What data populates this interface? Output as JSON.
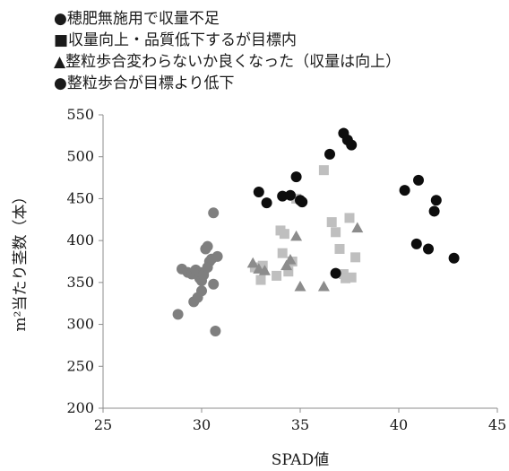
{
  "colors": {
    "nitrogen_shortage": "#7f7f7f",
    "within_target": "#bfbfbf",
    "improved": "#8c8c8c",
    "below_target": "#0d0d0d",
    "axis": "#8c8c8c"
  },
  "legend": [
    {
      "label": "●穂肥無施用で収量不足",
      "marker": "circle",
      "color_key": "nitrogen_shortage"
    },
    {
      "label": "■収量向上・品質低下するが目標内",
      "marker": "square",
      "color_key": "within_target"
    },
    {
      "label": "▲整粒歩合変わらないか良くなった（収量は向上）",
      "marker": "triangle",
      "color_key": "improved"
    },
    {
      "label": "●整粒歩合が目標より低下",
      "marker": "circle",
      "color_key": "below_target"
    }
  ],
  "chart_data": {
    "type": "scatter",
    "xlabel": "SPAD値",
    "ylabel": "m²当たり茎数（本）",
    "xlim": [
      25,
      45
    ],
    "ylim": [
      200,
      550
    ],
    "xticks": [
      25,
      30,
      35,
      40,
      45
    ],
    "yticks": [
      200,
      250,
      300,
      350,
      400,
      450,
      500,
      550
    ],
    "grid": false,
    "legend_position": "top-left",
    "series": [
      {
        "name": "穂肥無施用で収量不足",
        "marker": "circle",
        "color": "#7f7f7f",
        "points": [
          [
            28.8,
            312
          ],
          [
            29.0,
            366
          ],
          [
            29.3,
            362
          ],
          [
            29.5,
            360
          ],
          [
            29.6,
            327
          ],
          [
            29.7,
            365
          ],
          [
            29.8,
            332
          ],
          [
            29.9,
            355
          ],
          [
            29.9,
            362
          ],
          [
            30.0,
            340
          ],
          [
            30.0,
            352
          ],
          [
            30.1,
            362
          ],
          [
            30.1,
            359
          ],
          [
            30.2,
            390
          ],
          [
            30.3,
            368
          ],
          [
            30.3,
            393
          ],
          [
            30.4,
            375
          ],
          [
            30.5,
            378
          ],
          [
            30.6,
            433
          ],
          [
            30.6,
            348
          ],
          [
            30.7,
            292
          ],
          [
            30.8,
            381
          ]
        ]
      },
      {
        "name": "収量向上・品質低下するが目標内",
        "marker": "square",
        "color": "#bfbfbf",
        "points": [
          [
            32.7,
            368
          ],
          [
            33.0,
            353
          ],
          [
            33.1,
            370
          ],
          [
            33.8,
            358
          ],
          [
            34.0,
            412
          ],
          [
            34.1,
            385
          ],
          [
            34.2,
            408
          ],
          [
            34.4,
            363
          ],
          [
            34.6,
            375
          ],
          [
            34.8,
            450
          ],
          [
            36.2,
            484
          ],
          [
            36.6,
            422
          ],
          [
            36.8,
            410
          ],
          [
            37.0,
            390
          ],
          [
            37.2,
            360
          ],
          [
            37.3,
            355
          ],
          [
            37.5,
            427
          ],
          [
            37.6,
            356
          ],
          [
            37.8,
            380
          ]
        ]
      },
      {
        "name": "整粒歩合変わらないか良くなった（収量は向上）",
        "marker": "triangle",
        "color": "#8c8c8c",
        "points": [
          [
            32.6,
            373
          ],
          [
            32.9,
            366
          ],
          [
            33.2,
            364
          ],
          [
            34.3,
            370
          ],
          [
            34.5,
            377
          ],
          [
            34.8,
            405
          ],
          [
            35.0,
            345
          ],
          [
            36.2,
            345
          ],
          [
            37.9,
            415
          ]
        ]
      },
      {
        "name": "整粒歩合が目標より低下",
        "marker": "circle",
        "color": "#0d0d0d",
        "points": [
          [
            32.9,
            458
          ],
          [
            33.3,
            445
          ],
          [
            34.1,
            453
          ],
          [
            34.5,
            454
          ],
          [
            34.8,
            476
          ],
          [
            35.0,
            448
          ],
          [
            35.1,
            446
          ],
          [
            36.5,
            503
          ],
          [
            36.8,
            361
          ],
          [
            37.2,
            528
          ],
          [
            37.4,
            520
          ],
          [
            37.6,
            514
          ],
          [
            40.3,
            460
          ],
          [
            40.9,
            396
          ],
          [
            41.0,
            472
          ],
          [
            41.5,
            390
          ],
          [
            41.8,
            435
          ],
          [
            41.9,
            448
          ],
          [
            42.8,
            379
          ]
        ]
      }
    ]
  }
}
